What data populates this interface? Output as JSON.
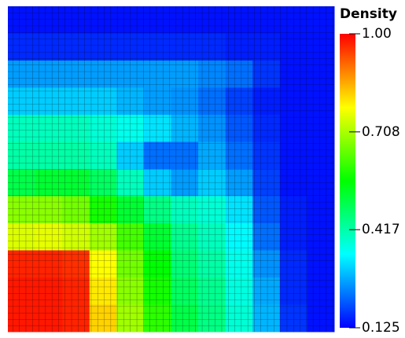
{
  "chart_data": {
    "type": "heatmap",
    "colorbar_title": "Density",
    "colormap": [
      "#0000ff",
      "#00ffff",
      "#00ff00",
      "#ffff00",
      "#ff0000"
    ],
    "clim": [
      0.125,
      1.0
    ],
    "cticks": [
      {
        "value": 1.0,
        "label": "1.00"
      },
      0.708,
      0.417,
      0.125
    ],
    "mesh": true,
    "z": [
      [
        0.14,
        0.14,
        0.14,
        0.14,
        0.14,
        0.14,
        0.14,
        0.14,
        0.14,
        0.14,
        0.14,
        0.14
      ],
      [
        0.16,
        0.16,
        0.16,
        0.16,
        0.16,
        0.16,
        0.16,
        0.16,
        0.15,
        0.15,
        0.14,
        0.14
      ],
      [
        0.26,
        0.26,
        0.26,
        0.26,
        0.26,
        0.26,
        0.26,
        0.24,
        0.22,
        0.17,
        0.14,
        0.14
      ],
      [
        0.3,
        0.3,
        0.3,
        0.3,
        0.28,
        0.26,
        0.25,
        0.22,
        0.18,
        0.15,
        0.14,
        0.14
      ],
      [
        0.4,
        0.4,
        0.4,
        0.38,
        0.36,
        0.32,
        0.28,
        0.25,
        0.2,
        0.16,
        0.14,
        0.14
      ],
      [
        0.42,
        0.42,
        0.42,
        0.4,
        0.3,
        0.22,
        0.22,
        0.27,
        0.22,
        0.17,
        0.14,
        0.14
      ],
      [
        0.5,
        0.52,
        0.52,
        0.48,
        0.4,
        0.3,
        0.26,
        0.3,
        0.26,
        0.18,
        0.14,
        0.14
      ],
      [
        0.68,
        0.68,
        0.66,
        0.58,
        0.52,
        0.45,
        0.4,
        0.38,
        0.32,
        0.2,
        0.15,
        0.14
      ],
      [
        0.75,
        0.76,
        0.74,
        0.7,
        0.62,
        0.52,
        0.44,
        0.4,
        0.34,
        0.22,
        0.15,
        0.14
      ],
      [
        0.97,
        0.97,
        0.96,
        0.78,
        0.66,
        0.56,
        0.46,
        0.42,
        0.36,
        0.25,
        0.16,
        0.14
      ],
      [
        0.98,
        0.98,
        0.97,
        0.8,
        0.68,
        0.58,
        0.48,
        0.44,
        0.37,
        0.27,
        0.16,
        0.14
      ],
      [
        0.98,
        0.98,
        0.97,
        0.82,
        0.7,
        0.6,
        0.5,
        0.45,
        0.38,
        0.28,
        0.17,
        0.14
      ]
    ]
  }
}
